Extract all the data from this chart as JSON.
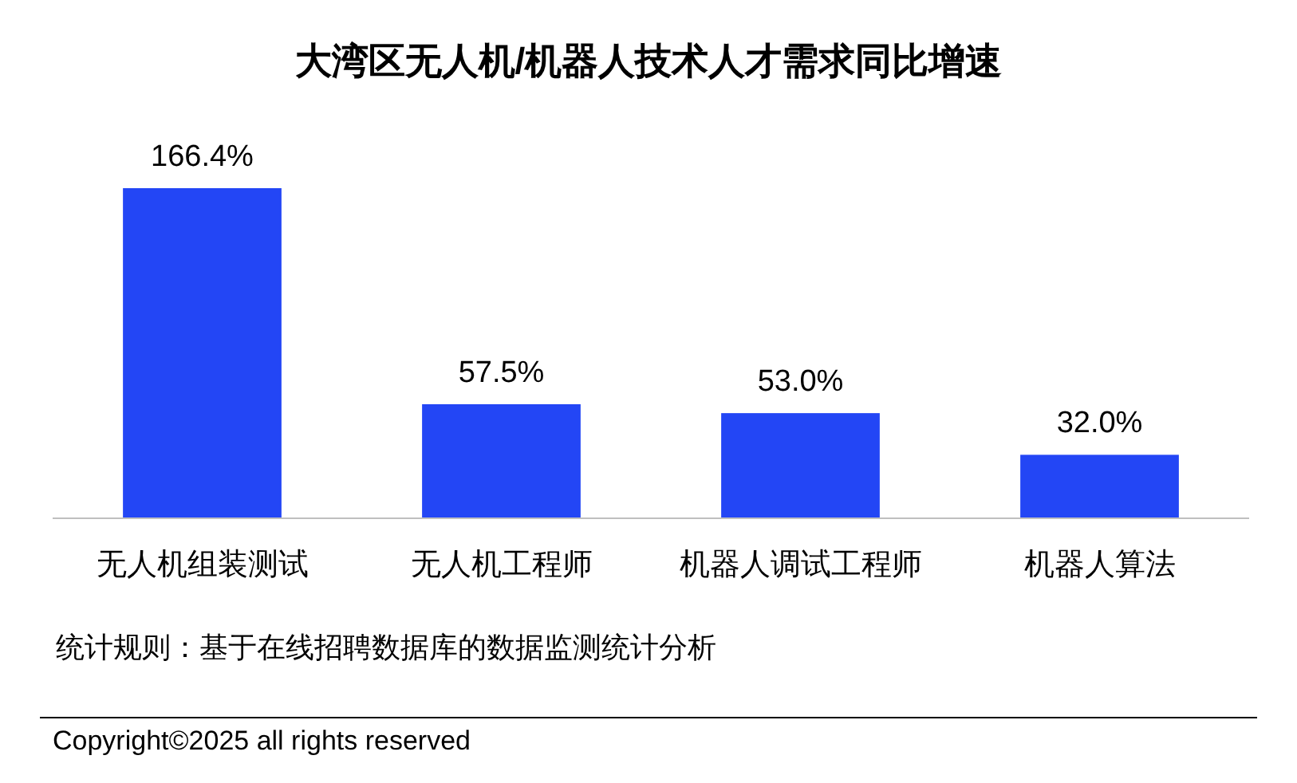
{
  "chart_data": {
    "type": "bar",
    "title": "大湾区无人机/机器人技术人才需求同比增速",
    "categories": [
      "无人机组装测试",
      "无人机工程师",
      "机器人调试工程师",
      "机器人算法"
    ],
    "values": [
      166.4,
      57.5,
      53.0,
      32.0
    ],
    "color": "#2346f5",
    "value_labels": [
      "166.4%",
      "57.5%",
      "53.0%",
      "32.0%"
    ],
    "annotations": [
      "统计规则：基于在线招聘数据库的数据监测统计分析",
      "Copyright©2025 all rights reserved"
    ]
  }
}
